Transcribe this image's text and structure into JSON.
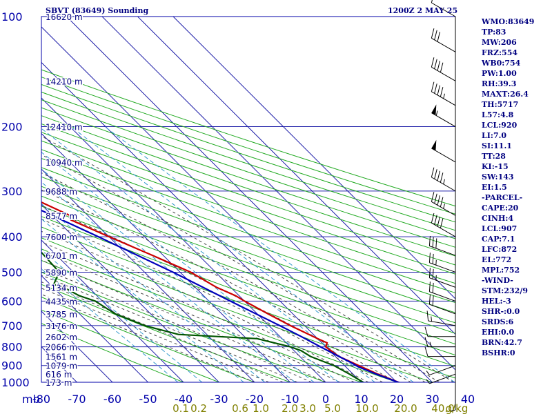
{
  "header": {
    "station": "SBVT (83649) Sounding",
    "time": "1200Z  2 MAY 25"
  },
  "indices": [
    "WMO:83649",
    "TP:83",
    "MW:206",
    "FRZ:554",
    "WB0:754",
    "PW:1.00",
    "RH:39.3",
    "MAXT:26.4",
    "TH:5717",
    "L57:4.8",
    "LCL:920",
    "LI:7.0",
    "SI:11.1",
    "TT:28",
    "KI:-15",
    "SW:143",
    "EI:1.5",
    "-PARCEL-",
    "CAPE:20",
    "CINH:4",
    "LCL:907",
    "CAP:7.1",
    "LFC:872",
    "EL:772",
    "MPL:752",
    "-WIND-",
    "STM:232/9",
    "HEL:-3",
    "SHR-:0.0",
    "SRDS:6",
    "EHI:0.0",
    "BRN:42.7",
    "BSHR:0"
  ],
  "colors": {
    "frame": "#0000aa",
    "grid": "#2222aa",
    "dry_adiabat": "#22aa22",
    "moist_adiabat": "#444444",
    "mixing_ratio": "#3399cc",
    "temperature": "#cc0000",
    "dewpoint": "#005500",
    "parcel": "#0000bb",
    "mixing_label": "#808000",
    "wind": "#000000",
    "text": "#000080"
  },
  "chart_data": {
    "type": "line",
    "title": "SBVT (83649) Sounding",
    "ylabel": "mb",
    "pressure_axis": {
      "ticks": [
        100,
        200,
        300,
        400,
        500,
        600,
        700,
        800,
        900,
        1000
      ],
      "labels": [
        "100",
        "200",
        "300",
        "400",
        "500",
        "600",
        "700",
        "800",
        "900",
        "1000"
      ],
      "range_mb": [
        100,
        1000
      ],
      "scale": "log"
    },
    "temperature_axis": {
      "ticks": [
        -80,
        -70,
        -60,
        -50,
        -40,
        -30,
        -20,
        -10,
        0,
        10,
        20,
        30,
        40
      ],
      "labels": [
        "-80",
        "-70",
        "-60",
        "-50",
        "-40",
        "-30",
        "-20",
        "-10",
        "0",
        "10",
        "20",
        "30",
        "40"
      ],
      "range_c": [
        -80,
        40
      ]
    },
    "height_labels": [
      {
        "p": 100,
        "label": "16620 m"
      },
      {
        "p": 150,
        "label": "14210 m"
      },
      {
        "p": 200,
        "label": "12410 m"
      },
      {
        "p": 250,
        "label": "10940 m"
      },
      {
        "p": 300,
        "label": "9688 m"
      },
      {
        "p": 350,
        "label": "8577 m"
      },
      {
        "p": 400,
        "label": "7600 m"
      },
      {
        "p": 450,
        "label": "6701 m"
      },
      {
        "p": 500,
        "label": "5890 m"
      },
      {
        "p": 550,
        "label": "5134 m"
      },
      {
        "p": 600,
        "label": "4435 m"
      },
      {
        "p": 650,
        "label": "3785 m"
      },
      {
        "p": 700,
        "label": "3176 m"
      },
      {
        "p": 750,
        "label": "2602 m"
      },
      {
        "p": 800,
        "label": "2066 m"
      },
      {
        "p": 850,
        "label": "1561 m"
      },
      {
        "p": 900,
        "label": "1079 m"
      },
      {
        "p": 950,
        "label": "616 m"
      },
      {
        "p": 1000,
        "label": "173 m"
      }
    ],
    "mixing_ratio_labels": [
      "0.1",
      "0.2",
      "0.6",
      "1.0",
      "2.0",
      "3.0",
      "5.0",
      "10.0",
      "20.0",
      "40.0",
      "g/kg"
    ],
    "grid": true,
    "series": [
      {
        "key": "temperature",
        "points": [
          [
            1015,
            21.5
          ],
          [
            1000,
            20.5
          ],
          [
            950,
            17
          ],
          [
            900,
            14
          ],
          [
            850,
            11
          ],
          [
            800,
            10
          ],
          [
            780,
            11.5
          ],
          [
            760,
            10
          ],
          [
            700,
            6
          ],
          [
            650,
            3
          ],
          [
            600,
            0
          ],
          [
            580,
            -1
          ],
          [
            550,
            -4
          ],
          [
            500,
            -7
          ],
          [
            450,
            -13
          ],
          [
            400,
            -20
          ],
          [
            360,
            -26
          ],
          [
            350,
            -25
          ],
          [
            300,
            -33
          ],
          [
            250,
            -43
          ],
          [
            200,
            -55
          ],
          [
            150,
            -65
          ],
          [
            100,
            -74
          ]
        ]
      },
      {
        "key": "dewpoint",
        "points": [
          [
            1015,
            11
          ],
          [
            950,
            9
          ],
          [
            900,
            7
          ],
          [
            850,
            3
          ],
          [
            820,
            2
          ],
          [
            800,
            0
          ],
          [
            760,
            -7
          ],
          [
            740,
            -28
          ],
          [
            700,
            -35
          ],
          [
            650,
            -40
          ],
          [
            600,
            -42
          ],
          [
            580,
            -45
          ],
          [
            550,
            -47
          ],
          [
            540,
            -49
          ],
          [
            500,
            -44
          ],
          [
            400,
            -43
          ],
          [
            380,
            -41
          ],
          [
            350,
            -52
          ],
          [
            320,
            -49
          ],
          [
            300,
            -58
          ],
          [
            250,
            -53
          ],
          [
            235,
            -58
          ],
          [
            200,
            -67
          ],
          [
            180,
            -67
          ],
          [
            150,
            -76
          ]
        ]
      },
      {
        "key": "parcel",
        "points": [
          [
            1015,
            21.5
          ],
          [
            950,
            16.5
          ],
          [
            907,
            13.5
          ],
          [
            880,
            12.5
          ],
          [
            850,
            11
          ],
          [
            800,
            8.5
          ],
          [
            750,
            6
          ],
          [
            700,
            3
          ],
          [
            600,
            -4
          ],
          [
            500,
            -12
          ],
          [
            400,
            -23
          ],
          [
            300,
            -38
          ],
          [
            250,
            -48
          ],
          [
            200,
            -60
          ],
          [
            150,
            -76
          ]
        ]
      }
    ],
    "winds": [
      {
        "p": 1000,
        "dir": 180,
        "spd": 5
      },
      {
        "p": 950,
        "dir": 250,
        "spd": 5
      },
      {
        "p": 900,
        "dir": 250,
        "spd": 5
      },
      {
        "p": 850,
        "dir": 270,
        "spd": 10
      },
      {
        "p": 800,
        "dir": 270,
        "spd": 15
      },
      {
        "p": 750,
        "dir": 270,
        "spd": 10
      },
      {
        "p": 700,
        "dir": 280,
        "spd": 15
      },
      {
        "p": 650,
        "dir": 290,
        "spd": 20
      },
      {
        "p": 600,
        "dir": 290,
        "spd": 20
      },
      {
        "p": 550,
        "dir": 290,
        "spd": 25
      },
      {
        "p": 500,
        "dir": 290,
        "spd": 25
      },
      {
        "p": 450,
        "dir": 290,
        "spd": 30
      },
      {
        "p": 400,
        "dir": 300,
        "spd": 40
      },
      {
        "p": 350,
        "dir": 300,
        "spd": 45
      },
      {
        "p": 300,
        "dir": 300,
        "spd": 45
      },
      {
        "p": 250,
        "dir": 300,
        "spd": 50
      },
      {
        "p": 200,
        "dir": 300,
        "spd": 55
      },
      {
        "p": 175,
        "dir": 300,
        "spd": 45
      },
      {
        "p": 150,
        "dir": 300,
        "spd": 40
      },
      {
        "p": 125,
        "dir": 300,
        "spd": 30
      },
      {
        "p": 100,
        "dir": 300,
        "spd": 10
      }
    ]
  }
}
